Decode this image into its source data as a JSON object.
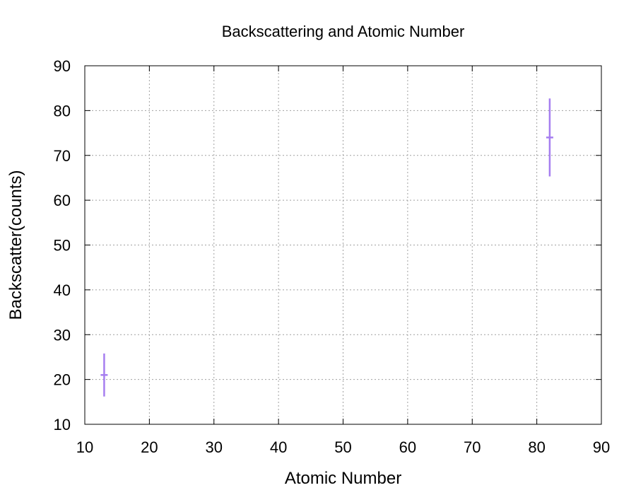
{
  "chart_data": {
    "type": "scatter",
    "title": "Backscattering and Atomic Number",
    "xlabel": "Atomic Number",
    "ylabel": "Backscatter(counts)",
    "xlim": [
      10,
      90
    ],
    "ylim": [
      10,
      90
    ],
    "x_ticks": [
      "10",
      "20",
      "30",
      "40",
      "50",
      "60",
      "70",
      "80",
      "90"
    ],
    "y_ticks": [
      "10",
      "20",
      "30",
      "40",
      "50",
      "60",
      "70",
      "80",
      "90"
    ],
    "grid": true,
    "legend": "none",
    "error_bars": true,
    "series": [
      {
        "color": "#a67ef0",
        "points": [
          {
            "x": 13,
            "y": 21,
            "yerr": 4.8
          },
          {
            "x": 82,
            "y": 74,
            "yerr": 8.7
          }
        ]
      }
    ]
  }
}
